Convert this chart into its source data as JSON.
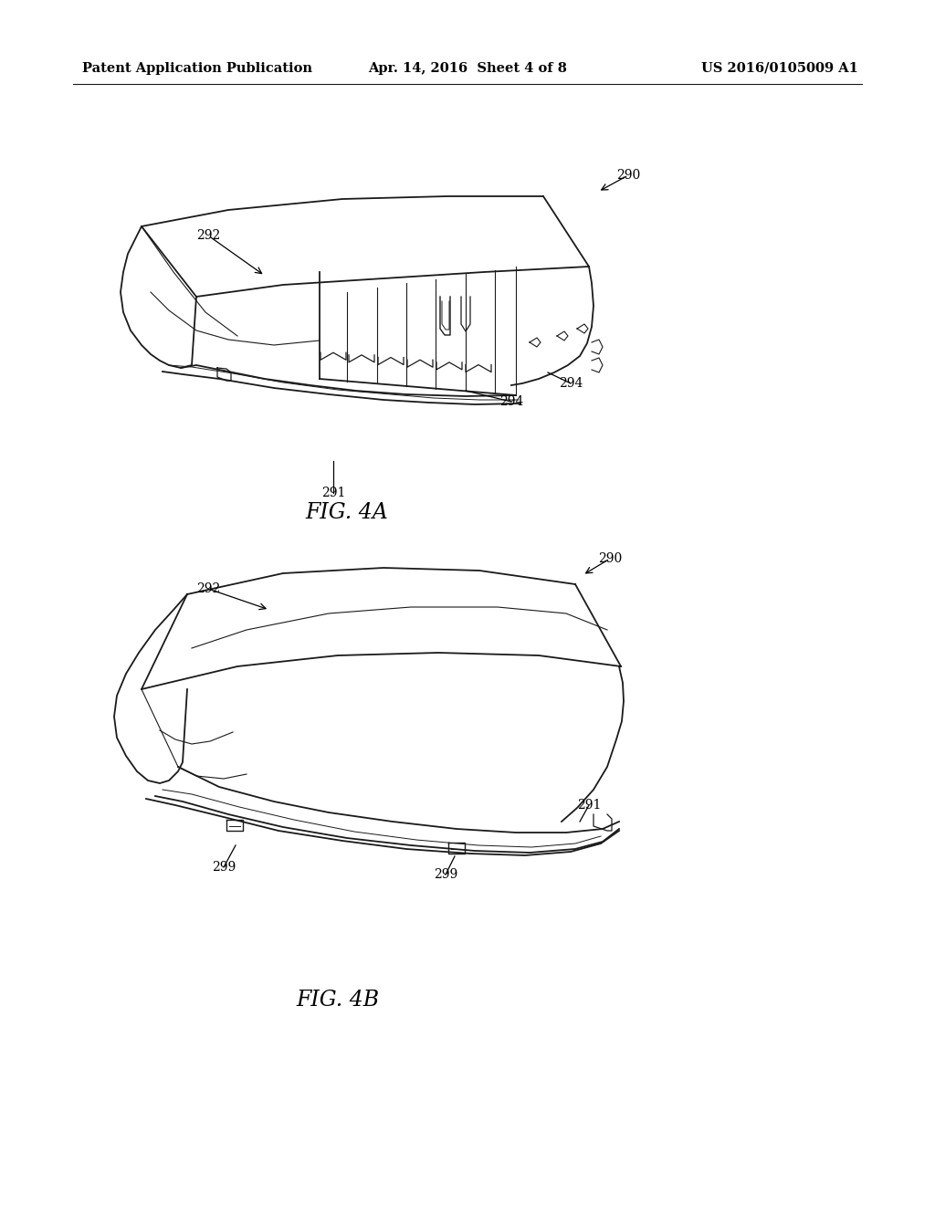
{
  "background_color": "#ffffff",
  "header_left": "Patent Application Publication",
  "header_center": "Apr. 14, 2016  Sheet 4 of 8",
  "header_right": "US 2016/0105009 A1",
  "header_fontsize": 10.5,
  "fig4a_label": "FIG. 4A",
  "fig4b_label": "FIG. 4B",
  "ref_fontsize": 10
}
